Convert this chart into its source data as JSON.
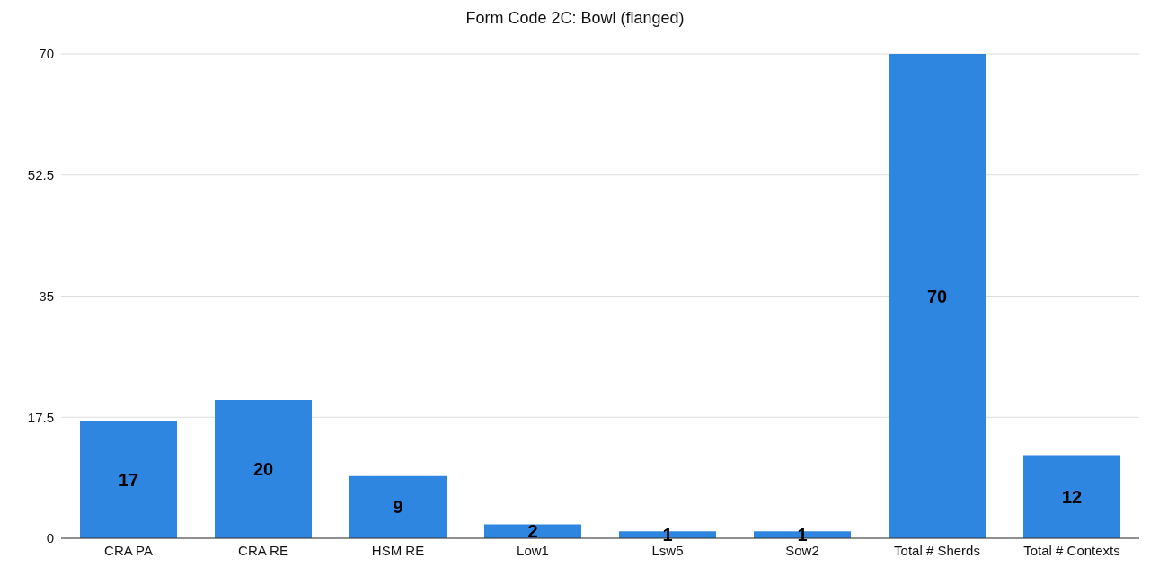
{
  "chart_data": {
    "type": "bar",
    "title": "Form Code 2C: Bowl (flanged)",
    "categories": [
      "CRA PA",
      "CRA RE",
      "HSM RE",
      "Low1",
      "Lsw5",
      "Sow2",
      "Total # Sherds",
      "Total # Contexts"
    ],
    "values": [
      17,
      20,
      9,
      2,
      1,
      1,
      70,
      12
    ],
    "color": "#2f86e0",
    "ylim": [
      0,
      70
    ],
    "yticks": [
      0,
      17.5,
      35,
      52.5,
      70
    ],
    "grid": "y",
    "data_labels": true
  }
}
